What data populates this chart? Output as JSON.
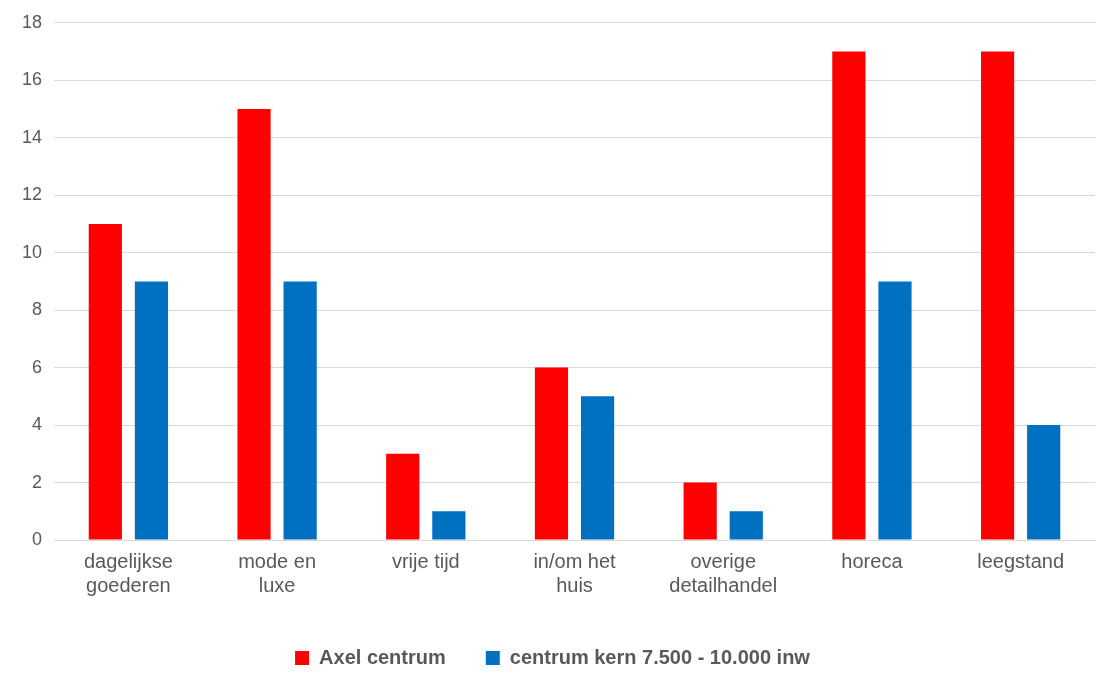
{
  "chart_data": {
    "type": "bar",
    "categories": [
      "dagelijkse goederen",
      "mode en luxe",
      "vrije tijd",
      "in/om het huis",
      "overige detailhandel",
      "horeca",
      "leegstand"
    ],
    "series": [
      {
        "name": "Axel centrum",
        "color": "#ff0000",
        "values": [
          11,
          15,
          3,
          6,
          2,
          17,
          17
        ]
      },
      {
        "name": "centrum kern 7.500 - 10.000 inw",
        "color": "#0070c0",
        "values": [
          9,
          9,
          1,
          5,
          1,
          9,
          4
        ]
      }
    ],
    "ylim": [
      0,
      18
    ],
    "yticks": [
      0,
      2,
      4,
      6,
      8,
      10,
      12,
      14,
      16,
      18
    ],
    "grid": "y",
    "legend": "bottom"
  }
}
